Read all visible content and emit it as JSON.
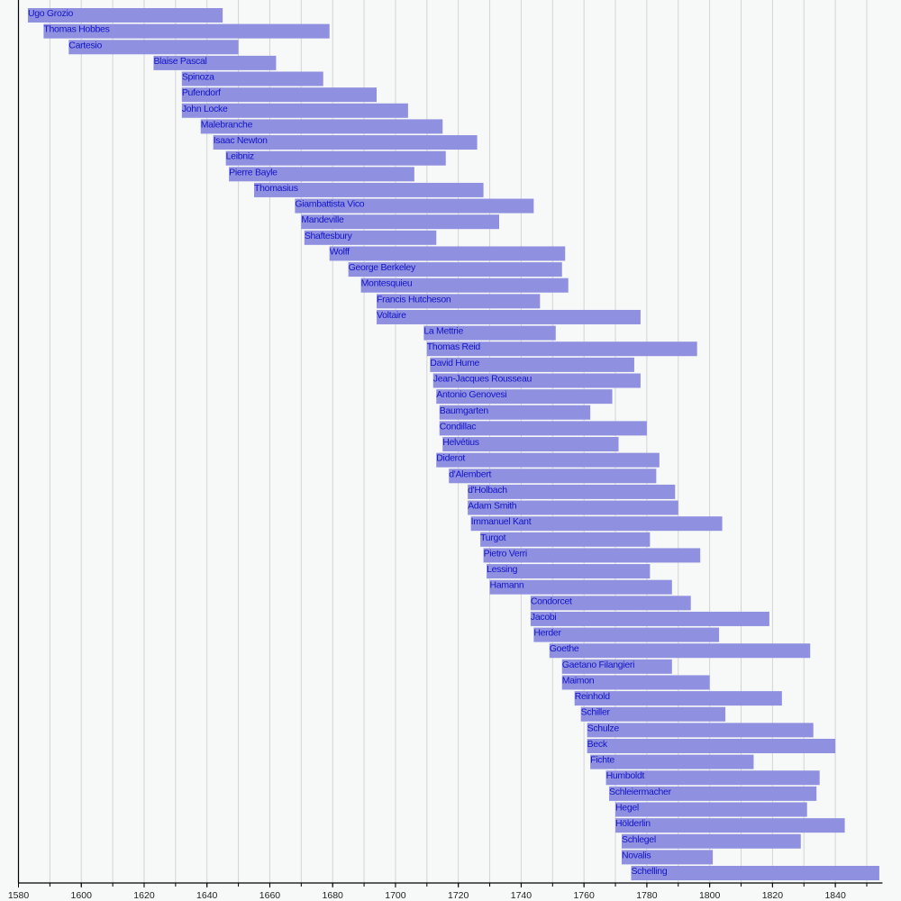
{
  "chart_data": {
    "type": "timeline",
    "xlim": [
      1580,
      1855
    ],
    "xticks": [
      1580,
      1600,
      1620,
      1640,
      1660,
      1680,
      1700,
      1720,
      1740,
      1760,
      1780,
      1800,
      1820,
      1840
    ],
    "grid": "vertical every 10 years",
    "colors": {
      "bar": "#8f91e0",
      "label": "#1414c8",
      "grid": "#d4d4d4",
      "axis": "#000000"
    },
    "series": [
      {
        "name": "Ugo Grozio",
        "start": 1583,
        "end": 1645
      },
      {
        "name": "Thomas Hobbes",
        "start": 1588,
        "end": 1679
      },
      {
        "name": "Cartesio",
        "start": 1596,
        "end": 1650
      },
      {
        "name": "Blaise Pascal",
        "start": 1623,
        "end": 1662
      },
      {
        "name": "Spinoza",
        "start": 1632,
        "end": 1677
      },
      {
        "name": "Pufendorf",
        "start": 1632,
        "end": 1694
      },
      {
        "name": "John Locke",
        "start": 1632,
        "end": 1704
      },
      {
        "name": "Malebranche",
        "start": 1638,
        "end": 1715
      },
      {
        "name": "Isaac Newton",
        "start": 1642,
        "end": 1726
      },
      {
        "name": "Leibniz",
        "start": 1646,
        "end": 1716
      },
      {
        "name": "Pierre Bayle",
        "start": 1647,
        "end": 1706
      },
      {
        "name": "Thomasius",
        "start": 1655,
        "end": 1728
      },
      {
        "name": "Giambattista Vico",
        "start": 1668,
        "end": 1744
      },
      {
        "name": "Mandeville",
        "start": 1670,
        "end": 1733
      },
      {
        "name": "Shaftesbury",
        "start": 1671,
        "end": 1713
      },
      {
        "name": "Wolff",
        "start": 1679,
        "end": 1754
      },
      {
        "name": "George Berkeley",
        "start": 1685,
        "end": 1753
      },
      {
        "name": "Montesquieu",
        "start": 1689,
        "end": 1755
      },
      {
        "name": "Francis Hutcheson",
        "start": 1694,
        "end": 1746
      },
      {
        "name": "Voltaire",
        "start": 1694,
        "end": 1778
      },
      {
        "name": "La Mettrie",
        "start": 1709,
        "end": 1751
      },
      {
        "name": "Thomas Reid",
        "start": 1710,
        "end": 1796
      },
      {
        "name": "David Hume",
        "start": 1711,
        "end": 1776
      },
      {
        "name": "Jean-Jacques Rousseau",
        "start": 1712,
        "end": 1778
      },
      {
        "name": "Antonio Genovesi",
        "start": 1713,
        "end": 1769
      },
      {
        "name": "Baumgarten",
        "start": 1714,
        "end": 1762
      },
      {
        "name": "Condillac",
        "start": 1714,
        "end": 1780
      },
      {
        "name": "Helvétius",
        "start": 1715,
        "end": 1771
      },
      {
        "name": "Diderot",
        "start": 1713,
        "end": 1784
      },
      {
        "name": "d'Alembert",
        "start": 1717,
        "end": 1783
      },
      {
        "name": "d'Holbach",
        "start": 1723,
        "end": 1789
      },
      {
        "name": "Adam Smith",
        "start": 1723,
        "end": 1790
      },
      {
        "name": "Immanuel Kant",
        "start": 1724,
        "end": 1804
      },
      {
        "name": "Turgot",
        "start": 1727,
        "end": 1781
      },
      {
        "name": "Pietro Verri",
        "start": 1728,
        "end": 1797
      },
      {
        "name": "Lessing",
        "start": 1729,
        "end": 1781
      },
      {
        "name": "Hamann",
        "start": 1730,
        "end": 1788
      },
      {
        "name": "Condorcet",
        "start": 1743,
        "end": 1794
      },
      {
        "name": "Jacobi",
        "start": 1743,
        "end": 1819
      },
      {
        "name": "Herder",
        "start": 1744,
        "end": 1803
      },
      {
        "name": "Goethe",
        "start": 1749,
        "end": 1832
      },
      {
        "name": "Gaetano Filangieri",
        "start": 1753,
        "end": 1788
      },
      {
        "name": "Maimon",
        "start": 1753,
        "end": 1800
      },
      {
        "name": "Reinhold",
        "start": 1757,
        "end": 1823
      },
      {
        "name": "Schiller",
        "start": 1759,
        "end": 1805
      },
      {
        "name": "Schulze",
        "start": 1761,
        "end": 1833
      },
      {
        "name": "Beck",
        "start": 1761,
        "end": 1840
      },
      {
        "name": "Fichte",
        "start": 1762,
        "end": 1814
      },
      {
        "name": "Humboldt",
        "start": 1767,
        "end": 1835
      },
      {
        "name": "Schleiermacher",
        "start": 1768,
        "end": 1834
      },
      {
        "name": "Hegel",
        "start": 1770,
        "end": 1831
      },
      {
        "name": "Hölderlin",
        "start": 1770,
        "end": 1843
      },
      {
        "name": "Schlegel",
        "start": 1772,
        "end": 1829
      },
      {
        "name": "Novalis",
        "start": 1772,
        "end": 1801
      },
      {
        "name": "Schelling",
        "start": 1775,
        "end": 1854
      }
    ]
  }
}
